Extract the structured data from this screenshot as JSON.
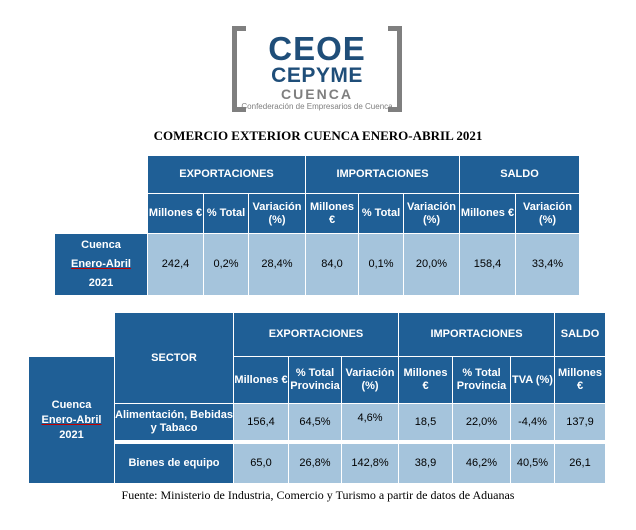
{
  "logo": {
    "line1": "CEOE",
    "line2": "CEPYME",
    "line3": "CUENCA",
    "line4": "Confederación de Empresarios de Cuenca"
  },
  "title": "COMERCIO EXTERIOR CUENCA ENERO-ABRIL 2021",
  "table1": {
    "groups": [
      "EXPORTACIONES",
      "IMPORTACIONES",
      "SALDO"
    ],
    "subheaders": [
      "Millones €",
      "% Total",
      "Variación (%)",
      "Millones €",
      "% Total",
      "Variación (%)",
      "Millones €",
      "Variación (%)"
    ],
    "row_label": [
      "Cuenca",
      "Enero-Abril",
      "2021"
    ],
    "values": [
      "242,4",
      "0,2%",
      "28,4%",
      "84,0",
      "0,1%",
      "20,0%",
      "158,4",
      "33,4%"
    ]
  },
  "table2": {
    "sector_header": "SECTOR",
    "groups": [
      "EXPORTACIONES",
      "IMPORTACIONES",
      "SALDO"
    ],
    "subheaders": [
      "Millones €",
      "% Total Provincia",
      "Variación (%)",
      "Millones €",
      "% Total Provincia",
      "TVA (%)",
      "Millones €"
    ],
    "row_label": [
      "Cuenca",
      "Enero-Abril",
      "2021"
    ],
    "rows": [
      {
        "sector": "Alimentación, Bebidas y Tabaco",
        "values": [
          "156,4",
          "64,5%",
          "4,6%",
          "18,5",
          "22,0%",
          "-4,4%",
          "137,9"
        ]
      },
      {
        "sector": "Bienes de equipo",
        "values": [
          "65,0",
          "26,8%",
          "142,8%",
          "38,9",
          "46,2%",
          "40,5%",
          "26,1"
        ]
      }
    ]
  },
  "source": "Fuente: Ministerio de Industria, Comercio y Turismo a partir de datos de Aduanas",
  "colors": {
    "header_blue": "#1f5f96",
    "data_light_blue": "#a5c4dc",
    "logo_blue": "#1f4e79",
    "logo_gray": "#7f7f7f"
  }
}
